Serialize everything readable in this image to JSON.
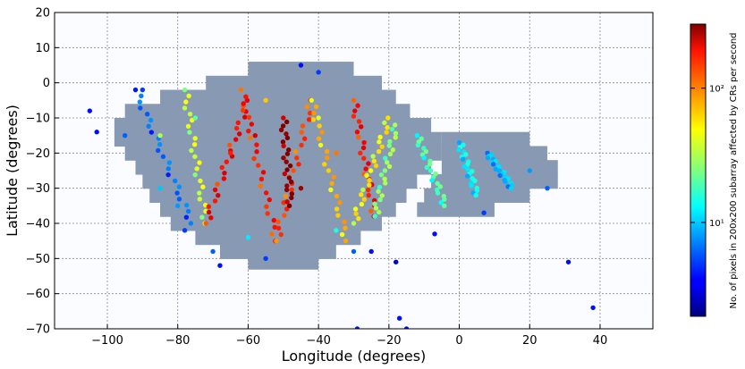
{
  "chart_data": {
    "type": "scatter",
    "xlabel": "Longitude (degrees)",
    "ylabel": "Latitude (degrees)",
    "xlim": [
      -115,
      55
    ],
    "ylim": [
      -70,
      20
    ],
    "xticks": [
      -100,
      -80,
      -60,
      -40,
      -20,
      0,
      20,
      40
    ],
    "yticks": [
      20,
      10,
      0,
      -10,
      -20,
      -30,
      -40,
      -50,
      -60,
      -70
    ],
    "grid": true,
    "colorbar": {
      "label": "No. of pixels in 200x200 subarray affected by CRs per second",
      "scale": "log",
      "range": [
        2,
        300
      ],
      "ticks": [
        {
          "value": 10,
          "label": "10¹"
        },
        {
          "value": 100,
          "label": "10²"
        }
      ],
      "colormap": "jet"
    },
    "coverage_region_color": "#8899b3",
    "coverage_rows": [
      {
        "lat": 4,
        "lon": [
          -60,
          -30
        ]
      },
      {
        "lat": 0,
        "lon": [
          -72,
          -22
        ]
      },
      {
        "lat": -4,
        "lon": [
          -85,
          -18
        ]
      },
      {
        "lat": -8,
        "lon": [
          -95,
          -14
        ]
      },
      {
        "lat": -12,
        "lon": [
          -98,
          -8
        ]
      },
      {
        "lat": -16,
        "lon": [
          -98,
          -5
        ]
      },
      {
        "lat": -20,
        "lon": [
          -95,
          -5
        ]
      },
      {
        "lat": -24,
        "lon": [
          -92,
          -8
        ]
      },
      {
        "lat": -28,
        "lon": [
          -90,
          -12
        ]
      },
      {
        "lat": -32,
        "lon": [
          -88,
          -15
        ]
      },
      {
        "lat": -36,
        "lon": [
          -85,
          -18
        ]
      },
      {
        "lat": -40,
        "lon": [
          -82,
          -22
        ]
      },
      {
        "lat": -44,
        "lon": [
          -75,
          -28
        ]
      },
      {
        "lat": -48,
        "lon": [
          -68,
          -35
        ]
      },
      {
        "lat": -51,
        "lon": [
          -60,
          -40
        ]
      },
      {
        "lat": -16,
        "lon": [
          -5,
          20
        ]
      },
      {
        "lat": -20,
        "lon": [
          -5,
          25
        ]
      },
      {
        "lat": -24,
        "lon": [
          -5,
          28
        ]
      },
      {
        "lat": -28,
        "lon": [
          -8,
          28
        ]
      },
      {
        "lat": -32,
        "lon": [
          -10,
          20
        ]
      },
      {
        "lat": -36,
        "lon": [
          -12,
          10
        ]
      }
    ],
    "tracks": [
      {
        "from": [
          -92,
          -2
        ],
        "to": [
          -76,
          -40
        ],
        "value": 6
      },
      {
        "from": [
          -78,
          -2
        ],
        "to": [
          -72,
          -40
        ],
        "value": 35
      },
      {
        "from": [
          -72,
          -40
        ],
        "to": [
          -60,
          -5
        ],
        "value": 150
      },
      {
        "from": [
          -62,
          -2
        ],
        "to": [
          -52,
          -45
        ],
        "value": 130
      },
      {
        "from": [
          -52,
          -45
        ],
        "to": [
          -42,
          -5
        ],
        "value": 110
      },
      {
        "from": [
          -50,
          -10
        ],
        "to": [
          -48,
          -35
        ],
        "value": 280
      },
      {
        "from": [
          -42,
          -5
        ],
        "to": [
          -32,
          -45
        ],
        "value": 60
      },
      {
        "from": [
          -30,
          -5
        ],
        "to": [
          -24,
          -38
        ],
        "value": 140
      },
      {
        "from": [
          -24,
          -38
        ],
        "to": [
          -18,
          -12
        ],
        "value": 25
      },
      {
        "from": [
          -30,
          -40
        ],
        "to": [
          -20,
          -10
        ],
        "value": 45
      },
      {
        "from": [
          -12,
          -15
        ],
        "to": [
          -4,
          -35
        ],
        "value": 18
      },
      {
        "from": [
          0,
          -17
        ],
        "to": [
          5,
          -32
        ],
        "value": 12
      },
      {
        "from": [
          8,
          -20
        ],
        "to": [
          15,
          -30
        ],
        "value": 9
      }
    ],
    "points": [
      {
        "x": -105,
        "y": -8,
        "value": 4
      },
      {
        "x": -103,
        "y": -14,
        "value": 4
      },
      {
        "x": -95,
        "y": -15,
        "value": 6
      },
      {
        "x": -90,
        "y": -2,
        "value": 5
      },
      {
        "x": -85,
        "y": -30,
        "value": 10
      },
      {
        "x": -80,
        "y": -35,
        "value": 8
      },
      {
        "x": -78,
        "y": -42,
        "value": 5
      },
      {
        "x": -70,
        "y": -48,
        "value": 6
      },
      {
        "x": -68,
        "y": -52,
        "value": 4
      },
      {
        "x": -60,
        "y": -44,
        "value": 12
      },
      {
        "x": -55,
        "y": -50,
        "value": 5
      },
      {
        "x": -45,
        "y": 5,
        "value": 4
      },
      {
        "x": -40,
        "y": 3,
        "value": 5
      },
      {
        "x": -35,
        "y": -42,
        "value": 15
      },
      {
        "x": -30,
        "y": -48,
        "value": 6
      },
      {
        "x": -25,
        "y": -48,
        "value": 4
      },
      {
        "x": -29,
        "y": -70,
        "value": 4
      },
      {
        "x": -18,
        "y": -51,
        "value": 3
      },
      {
        "x": -17,
        "y": -67,
        "value": 4
      },
      {
        "x": -15,
        "y": -70,
        "value": 4
      },
      {
        "x": -7,
        "y": -43,
        "value": 4
      },
      {
        "x": 7,
        "y": -37,
        "value": 5
      },
      {
        "x": 20,
        "y": -25,
        "value": 8
      },
      {
        "x": 25,
        "y": -30,
        "value": 6
      },
      {
        "x": 31,
        "y": -51,
        "value": 4
      },
      {
        "x": 38,
        "y": -64,
        "value": 4
      },
      {
        "x": -65,
        "y": -20,
        "value": 140
      },
      {
        "x": -58,
        "y": -15,
        "value": 200
      },
      {
        "x": -45,
        "y": -30,
        "value": 260
      },
      {
        "x": -35,
        "y": -20,
        "value": 90
      },
      {
        "x": -85,
        "y": -15,
        "value": 30
      },
      {
        "x": -75,
        "y": -10,
        "value": 20
      },
      {
        "x": -55,
        "y": -5,
        "value": 60
      },
      {
        "x": -40,
        "y": -10,
        "value": 40
      }
    ]
  }
}
